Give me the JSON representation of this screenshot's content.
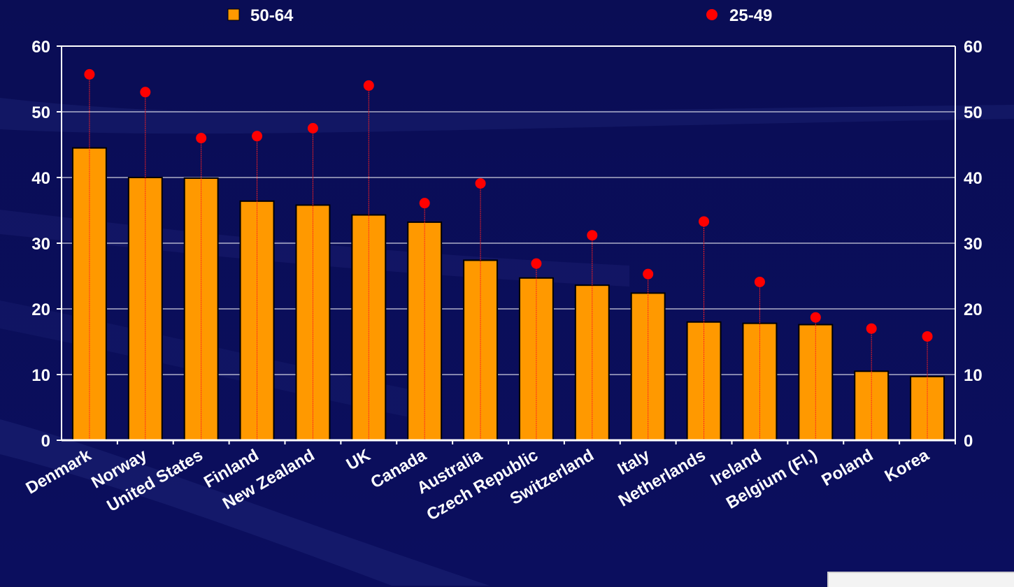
{
  "colors": {
    "background": "#0c0f5a",
    "bar_fill": "#ff9900",
    "bar_stroke": "#000000",
    "dot_fill": "#ff0000",
    "dropline": "#ff2020",
    "grid": "#ffffff",
    "text": "#ffffff"
  },
  "chart_data": {
    "type": "bar",
    "categories": [
      "Denmark",
      "Norway",
      "United States",
      "Finland",
      "New Zealand",
      "UK",
      "Canada",
      "Australia",
      "Czech Republic",
      "Switzerland",
      "Italy",
      "Netherlands",
      "Ireland",
      "Belgium (Fl.)",
      "Poland",
      "Korea"
    ],
    "series": [
      {
        "name": "50-64",
        "type": "bar",
        "values": [
          44.5,
          40.0,
          39.9,
          36.4,
          35.8,
          34.3,
          33.2,
          27.4,
          24.7,
          23.6,
          22.4,
          18.0,
          17.8,
          17.6,
          10.5,
          9.7
        ]
      },
      {
        "name": "25-49",
        "type": "dot",
        "values": [
          55.7,
          53.0,
          46.0,
          46.3,
          47.5,
          54.0,
          36.1,
          39.1,
          26.9,
          31.2,
          25.3,
          33.3,
          24.1,
          18.7,
          17.0,
          15.8
        ]
      }
    ],
    "ylim": [
      0,
      60
    ],
    "yticks": [
      0,
      10,
      20,
      30,
      40,
      50,
      60
    ],
    "grid": true,
    "legend": {
      "position": "top",
      "items": [
        "50-64",
        "25-49"
      ]
    },
    "secondary_y_axis": true
  }
}
